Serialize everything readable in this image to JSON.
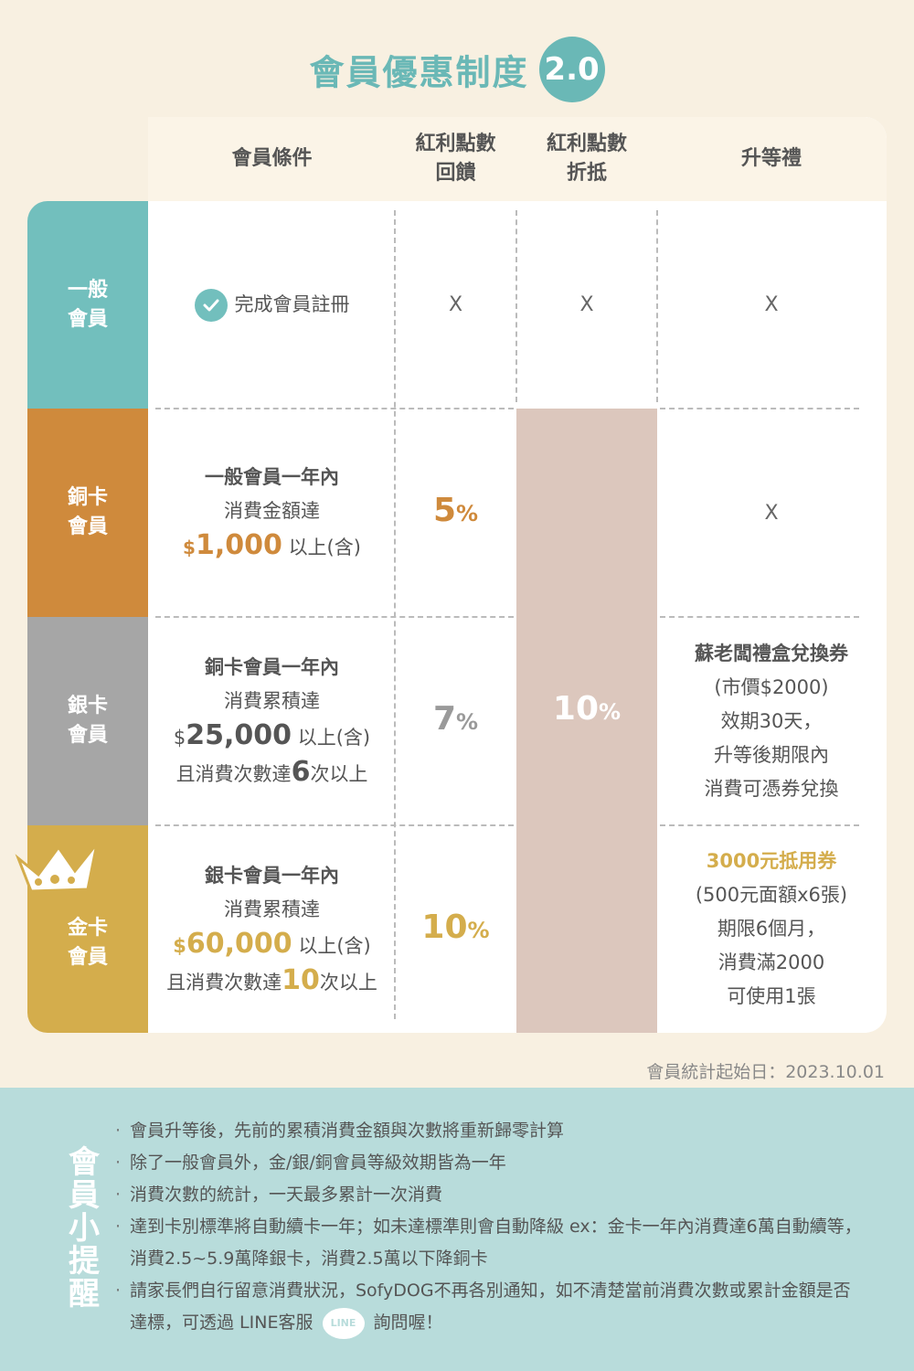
{
  "title": "會員優惠制度",
  "version": "2.0",
  "headers": {
    "condition": "會員條件",
    "bonus_reward_l1": "紅利點數",
    "bonus_reward_l2": "回饋",
    "bonus_redeem_l1": "紅利點數",
    "bonus_redeem_l2": "折抵",
    "upgrade_gift": "升等禮"
  },
  "tiers": [
    {
      "name_l1": "一般",
      "name_l2": "會員",
      "condition": "完成會員註冊",
      "reward": "X",
      "redeem": "X",
      "gift": "X",
      "color": "#72bfbd"
    },
    {
      "name_l1": "銅卡",
      "name_l2": "會員",
      "cond_l1": "一般會員一年內",
      "cond_l2": "消費金額達",
      "cond_dollar": "$",
      "cond_amount": "1,000",
      "cond_suffix": "以上(含)",
      "reward_num": "5",
      "reward_pct": "%",
      "gift": "X",
      "color": "#cf8a3c"
    },
    {
      "name_l1": "銀卡",
      "name_l2": "會員",
      "cond_l1": "銅卡會員一年內",
      "cond_l2": "消費累積達",
      "cond_dollar": "$",
      "cond_amount": "25,000",
      "cond_suffix": "以上(含)",
      "cond_l4_pre": "且消費次數達",
      "cond_l4_num": "6",
      "cond_l4_post": "次以上",
      "reward_num": "7",
      "reward_pct": "%",
      "gift_l1": "蘇老闆禮盒兌換券",
      "gift_l2": "(市價$2000)",
      "gift_l3": "效期30天，",
      "gift_l4": "升等後期限內",
      "gift_l5": "消費可憑券兌換",
      "color": "#a6a6a6"
    },
    {
      "name_l1": "金卡",
      "name_l2": "會員",
      "cond_l1": "銀卡會員一年內",
      "cond_l2": "消費累積達",
      "cond_dollar": "$",
      "cond_amount": "60,000",
      "cond_suffix": "以上(含)",
      "cond_l4_pre": "且消費次數達",
      "cond_l4_num": "10",
      "cond_l4_post": "次以上",
      "reward_num": "10",
      "reward_pct": "%",
      "gift_l1": "3000元抵用券",
      "gift_l2": "(500元面額x6張)",
      "gift_l3": "期限6個月，",
      "gift_l4": "消費滿2000",
      "gift_l5": "可使用1張",
      "color": "#d4ad4c"
    }
  ],
  "redeem_shared": {
    "num": "10",
    "pct": "%"
  },
  "stat_start": "會員統計起始日：2023.10.01",
  "notes": {
    "title_chars": [
      "會",
      "員",
      "小",
      "提",
      "醒"
    ],
    "items": [
      "會員升等後，先前的累積消費金額與次數將重新歸零計算",
      "除了一般會員外，金/銀/銅會員等級效期皆為一年",
      "消費次數的統計，一天最多累計一次消費",
      "達到卡別標準將自動續卡一年；如未達標準則會自動降級 ex：金卡一年內消費達6萬自動續等，消費2.5~5.9萬降銀卡，消費2.5萬以下降銅卡"
    ],
    "last_pre": "請家長們自行留意消費狀況，SofyDOG不再各別通知，如不清楚當前消費次數或累計金額是否達標，可透過 LINE客服",
    "line_badge": "LINE",
    "last_post": "詢問喔！"
  }
}
